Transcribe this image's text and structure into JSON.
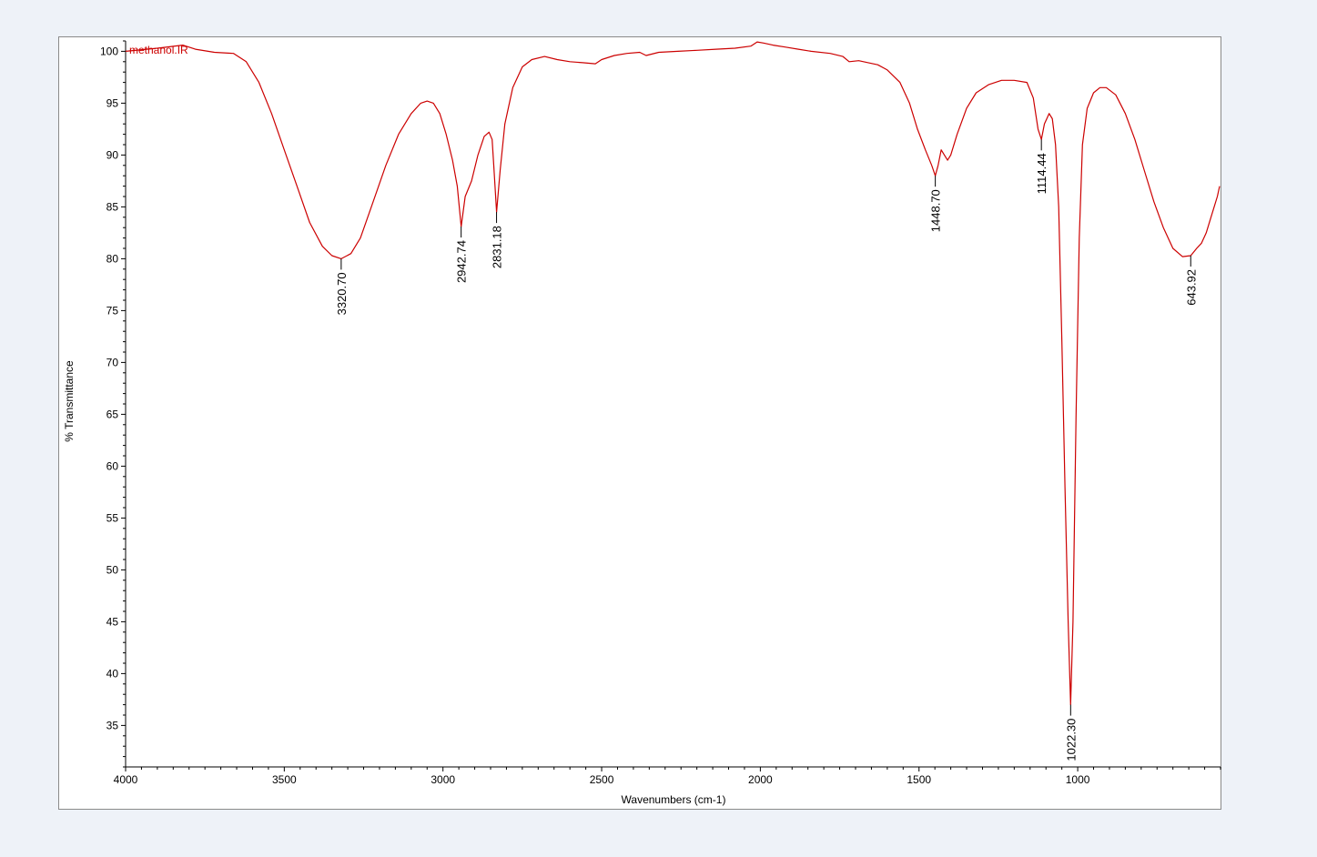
{
  "chart_data": {
    "type": "line",
    "title": "",
    "series_label": "methanol.IR",
    "xlabel": "Wavenumbers (cm-1)",
    "ylabel": "% Transmittance",
    "xlim": [
      4000,
      550
    ],
    "ylim": [
      31,
      101
    ],
    "x_reversed": true,
    "x_ticks": [
      4000,
      3500,
      3000,
      2500,
      2000,
      1500,
      1000
    ],
    "y_ticks": [
      35,
      40,
      45,
      50,
      55,
      60,
      65,
      70,
      75,
      80,
      85,
      90,
      95,
      100
    ],
    "grid": false,
    "colors": {
      "line": "#cc0000",
      "label": "#cc0000",
      "axis": "#000000",
      "frame_background": "#eef2f8"
    },
    "series": [
      {
        "name": "methanol.IR",
        "points": [
          [
            4000,
            100.0
          ],
          [
            3900,
            100.3
          ],
          [
            3820,
            100.6
          ],
          [
            3780,
            100.2
          ],
          [
            3720,
            99.9
          ],
          [
            3660,
            99.8
          ],
          [
            3620,
            99.0
          ],
          [
            3580,
            97.0
          ],
          [
            3540,
            94.0
          ],
          [
            3500,
            90.5
          ],
          [
            3460,
            87.0
          ],
          [
            3420,
            83.5
          ],
          [
            3380,
            81.2
          ],
          [
            3350,
            80.3
          ],
          [
            3320.7,
            80.0
          ],
          [
            3290,
            80.5
          ],
          [
            3260,
            82.0
          ],
          [
            3220,
            85.5
          ],
          [
            3180,
            89.0
          ],
          [
            3140,
            92.0
          ],
          [
            3100,
            94.0
          ],
          [
            3070,
            95.0
          ],
          [
            3050,
            95.2
          ],
          [
            3030,
            95.0
          ],
          [
            3010,
            94.0
          ],
          [
            2990,
            92.0
          ],
          [
            2970,
            89.5
          ],
          [
            2955,
            87.0
          ],
          [
            2942.74,
            83.1
          ],
          [
            2930,
            86.0
          ],
          [
            2910,
            87.5
          ],
          [
            2890,
            90.0
          ],
          [
            2870,
            91.8
          ],
          [
            2855,
            92.2
          ],
          [
            2845,
            91.5
          ],
          [
            2840,
            89.0
          ],
          [
            2831.18,
            84.5
          ],
          [
            2820,
            88.5
          ],
          [
            2805,
            93.0
          ],
          [
            2780,
            96.5
          ],
          [
            2750,
            98.5
          ],
          [
            2720,
            99.2
          ],
          [
            2680,
            99.5
          ],
          [
            2640,
            99.2
          ],
          [
            2600,
            99.0
          ],
          [
            2560,
            98.9
          ],
          [
            2520,
            98.8
          ],
          [
            2500,
            99.2
          ],
          [
            2460,
            99.6
          ],
          [
            2420,
            99.8
          ],
          [
            2380,
            99.9
          ],
          [
            2360,
            99.6
          ],
          [
            2320,
            99.9
          ],
          [
            2260,
            100.0
          ],
          [
            2200,
            100.1
          ],
          [
            2140,
            100.2
          ],
          [
            2080,
            100.3
          ],
          [
            2030,
            100.5
          ],
          [
            2010,
            100.9
          ],
          [
            1990,
            100.8
          ],
          [
            1960,
            100.6
          ],
          [
            1920,
            100.4
          ],
          [
            1880,
            100.2
          ],
          [
            1840,
            100.0
          ],
          [
            1780,
            99.8
          ],
          [
            1740,
            99.5
          ],
          [
            1720,
            99.0
          ],
          [
            1690,
            99.1
          ],
          [
            1660,
            98.9
          ],
          [
            1630,
            98.7
          ],
          [
            1600,
            98.2
          ],
          [
            1560,
            97.0
          ],
          [
            1530,
            95.0
          ],
          [
            1505,
            92.5
          ],
          [
            1480,
            90.5
          ],
          [
            1460,
            89.0
          ],
          [
            1448.7,
            88.0
          ],
          [
            1440,
            89.0
          ],
          [
            1430,
            90.5
          ],
          [
            1420,
            90.0
          ],
          [
            1410,
            89.5
          ],
          [
            1400,
            90.0
          ],
          [
            1380,
            92.0
          ],
          [
            1350,
            94.5
          ],
          [
            1320,
            96.0
          ],
          [
            1280,
            96.8
          ],
          [
            1240,
            97.2
          ],
          [
            1200,
            97.2
          ],
          [
            1160,
            97.0
          ],
          [
            1140,
            95.5
          ],
          [
            1125,
            92.5
          ],
          [
            1114.44,
            91.5
          ],
          [
            1105,
            93.0
          ],
          [
            1090,
            94.0
          ],
          [
            1080,
            93.5
          ],
          [
            1070,
            91.0
          ],
          [
            1060,
            85.0
          ],
          [
            1050,
            72.0
          ],
          [
            1040,
            58.0
          ],
          [
            1030,
            45.0
          ],
          [
            1022.3,
            37.0
          ],
          [
            1015,
            45.0
          ],
          [
            1005,
            65.0
          ],
          [
            995,
            82.0
          ],
          [
            985,
            91.0
          ],
          [
            970,
            94.5
          ],
          [
            950,
            96.0
          ],
          [
            930,
            96.5
          ],
          [
            910,
            96.5
          ],
          [
            880,
            95.8
          ],
          [
            850,
            94.0
          ],
          [
            820,
            91.5
          ],
          [
            790,
            88.5
          ],
          [
            760,
            85.5
          ],
          [
            730,
            83.0
          ],
          [
            700,
            81.0
          ],
          [
            670,
            80.2
          ],
          [
            643.92,
            80.3
          ],
          [
            625,
            81.0
          ],
          [
            610,
            81.5
          ],
          [
            595,
            82.5
          ],
          [
            580,
            84.0
          ],
          [
            570,
            85.0
          ],
          [
            560,
            86.0
          ],
          [
            553,
            87.0
          ]
        ]
      }
    ],
    "peak_labels": [
      {
        "x": 3320.7,
        "y": 80.0,
        "label": "3320.70"
      },
      {
        "x": 2942.74,
        "y": 83.1,
        "label": "2942.74"
      },
      {
        "x": 2831.18,
        "y": 84.5,
        "label": "2831.18"
      },
      {
        "x": 1448.7,
        "y": 88.0,
        "label": "1448.70"
      },
      {
        "x": 1114.44,
        "y": 91.5,
        "label": "1114.44"
      },
      {
        "x": 1022.3,
        "y": 37.0,
        "label": "1022.30"
      },
      {
        "x": 643.92,
        "y": 80.3,
        "label": "643.92"
      }
    ]
  }
}
